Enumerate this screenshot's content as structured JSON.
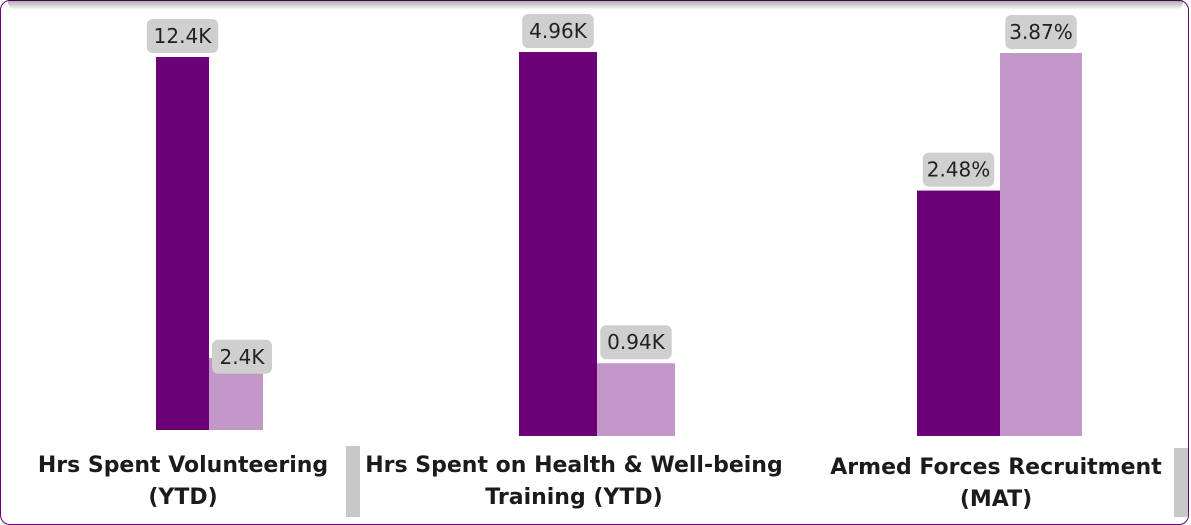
{
  "colors": {
    "current": "#6b0077",
    "comparison": "#c497c9",
    "label_bg": "#cfcfcf",
    "label_text": "#222222"
  },
  "chart_data": [
    {
      "type": "bar",
      "categories": [
        "Hrs Spent Volunteering (YTD)"
      ],
      "title_lines": [
        "Hrs Spent Volunteering",
        "(YTD)"
      ],
      "series": [
        {
          "values": [
            12.4
          ],
          "labels": [
            "12.4K"
          ]
        },
        {
          "values": [
            2.4
          ],
          "labels": [
            "2.4K"
          ]
        }
      ],
      "ylim": [
        0,
        12.4
      ]
    },
    {
      "type": "bar",
      "categories": [
        "Hrs Spent on Health & Well-being Training (YTD)"
      ],
      "title_lines": [
        "Hrs Spent on Health & Well-being",
        "Training (YTD)"
      ],
      "series": [
        {
          "values": [
            4.96
          ],
          "labels": [
            "4.96K"
          ]
        },
        {
          "values": [
            0.94
          ],
          "labels": [
            "0.94K"
          ]
        }
      ],
      "ylim": [
        0,
        4.96
      ]
    },
    {
      "type": "bar",
      "categories": [
        "Armed Forces Recruitment (MAT)"
      ],
      "title_lines": [
        "Armed Forces Recruitment",
        "(MAT)"
      ],
      "series": [
        {
          "values": [
            2.48
          ],
          "labels": [
            "2.48%"
          ]
        },
        {
          "values": [
            3.87
          ],
          "labels": [
            "3.87%"
          ]
        }
      ],
      "ylim": [
        0,
        3.87
      ]
    }
  ]
}
